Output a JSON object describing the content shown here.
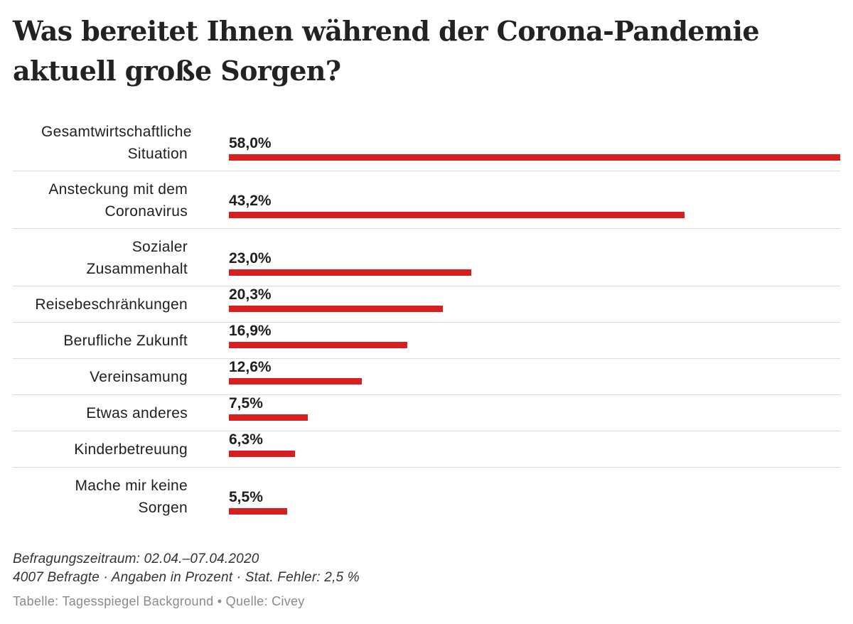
{
  "chart_data": {
    "type": "bar",
    "orientation": "horizontal",
    "title": "Was bereitet Ihnen während der Corona-Pandemie aktuell große Sorgen?",
    "categories": [
      "Gesamtwirtschaftliche Situation",
      "Ansteckung mit dem Coronavirus",
      "Sozialer Zusammenhalt",
      "Reisebeschränkungen",
      "Berufliche Zukunft",
      "Vereinsamung",
      "Etwas anderes",
      "Kinderbetreuung",
      "Mache mir keine Sorgen"
    ],
    "values": [
      58.0,
      43.2,
      23.0,
      20.3,
      16.9,
      12.6,
      7.5,
      6.3,
      5.5
    ],
    "value_labels": [
      "58,0%",
      "43,2%",
      "23,0%",
      "20,3%",
      "16,9%",
      "12,6%",
      "7,5%",
      "6,3%",
      "5,5%"
    ],
    "unit": "%",
    "xlim": [
      0,
      58.0
    ],
    "bar_color": "#d71f1f",
    "xlabel": "",
    "ylabel": ""
  },
  "footer": {
    "period": "Befragungszeitraum: 02.04.–07.04.2020",
    "details": "4007 Befragte · Angaben in Prozent · Stat. Fehler: 2,5 %",
    "source": "Tabelle: Tagesspiegel Background • Quelle: Civey"
  }
}
